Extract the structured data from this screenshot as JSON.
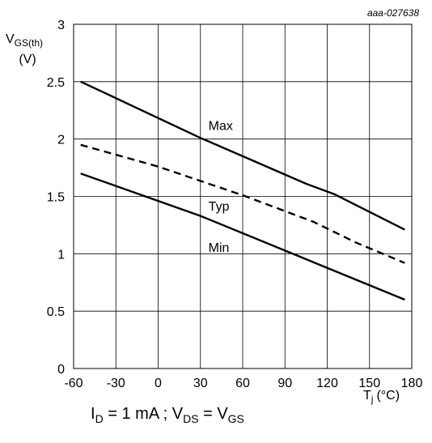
{
  "chart_data": {
    "type": "line",
    "figure_id": "aaa-027638",
    "ylabel": {
      "main": "V",
      "sub": "GS(th)",
      "unit": "(V)"
    },
    "xlabel": {
      "main": "T",
      "sub": "j",
      "unit": "(°C)"
    },
    "xlim": [
      -60,
      180
    ],
    "ylim": [
      0,
      3
    ],
    "x_ticks": [
      -60,
      -30,
      0,
      30,
      60,
      90,
      120,
      150,
      180
    ],
    "y_ticks": [
      0,
      0.5,
      1,
      1.5,
      2,
      2.5,
      3
    ],
    "x_tick_labels": [
      "-60",
      "-30",
      "0",
      "30",
      "60",
      "90",
      "120",
      "150",
      "180"
    ],
    "y_tick_labels": [
      "0",
      "0.5",
      "1",
      "1.5",
      "2",
      "2.5",
      "3"
    ],
    "grid": true,
    "series": [
      {
        "name": "Max",
        "style": "solid",
        "points": [
          [
            -55,
            2.5
          ],
          [
            30,
            2.01
          ],
          [
            105,
            1.61
          ],
          [
            125,
            1.52
          ],
          [
            175,
            1.21
          ]
        ]
      },
      {
        "name": "Typ",
        "style": "dashed",
        "points": [
          [
            -55,
            1.95
          ],
          [
            0,
            1.76
          ],
          [
            60,
            1.51
          ],
          [
            110,
            1.28
          ],
          [
            140,
            1.1
          ],
          [
            175,
            0.92
          ]
        ]
      },
      {
        "name": "Min",
        "style": "solid",
        "points": [
          [
            -55,
            1.7
          ],
          [
            30,
            1.33
          ],
          [
            175,
            0.6
          ]
        ]
      }
    ],
    "annotations": [
      {
        "text": "Max",
        "x": 38,
        "y": 2.12
      },
      {
        "text": "Typ",
        "x": 38,
        "y": 1.42
      },
      {
        "text": "Min",
        "x": 38,
        "y": 1.06
      }
    ]
  },
  "caption": {
    "id_main": "I",
    "id_sub": "D",
    "id_rest": " = 1 mA ; V",
    "vds_sub": "DS",
    "eq": " = V",
    "vgs_sub": "GS"
  }
}
